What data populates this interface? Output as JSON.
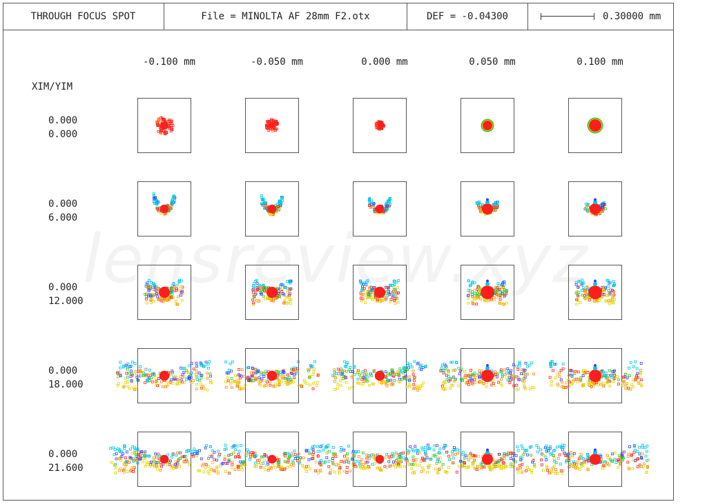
{
  "header": {
    "title": "THROUGH FOCUS SPOT",
    "file": "File = MINOLTA AF 28mm F2.otx",
    "def": "DEF = -0.04300",
    "scale_label": "0.30000 mm"
  },
  "axis_label": "XIM/YIM",
  "columns": [
    {
      "label": "-0.100  mm"
    },
    {
      "label": "-0.050  mm"
    },
    {
      "label": "0.000  mm"
    },
    {
      "label": "0.050  mm"
    },
    {
      "label": "0.100  mm"
    }
  ],
  "rows": [
    {
      "xim": "0.000",
      "yim": "0.000"
    },
    {
      "xim": "0.000",
      "yim": "6.000"
    },
    {
      "xim": "0.000",
      "yim": "12.000"
    },
    {
      "xim": "0.000",
      "yim": "18.000"
    },
    {
      "xim": "0.000",
      "yim": "21.600"
    }
  ],
  "watermark": "lensreview.xyz",
  "colors": {
    "wl_blue": "#3a3aff",
    "wl_cyan": "#00c8e6",
    "wl_green": "#28c828",
    "wl_yellow": "#e6d200",
    "wl_orange": "#ff8c1e",
    "wl_red": "#ff1e1e"
  }
}
